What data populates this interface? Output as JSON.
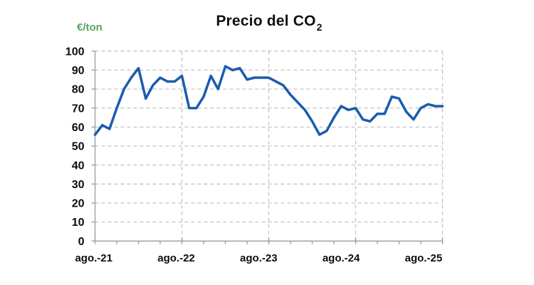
{
  "title": {
    "main": "Precio del CO",
    "sub": "2"
  },
  "y_axis_label": "€/ton",
  "colors": {
    "line": "#1b5cad",
    "unit_label": "#57a55f",
    "grid": "#c3c3c3",
    "axis": "#9b9b9b",
    "text": "#0d0d0d"
  },
  "chart_data": {
    "type": "line",
    "title": "Precio del CO2",
    "ylabel": "€/ton",
    "xlabel": "",
    "ylim": [
      0,
      100
    ],
    "y_ticks": [
      0,
      10,
      20,
      30,
      40,
      50,
      60,
      70,
      80,
      90,
      100
    ],
    "x_tick_labels": [
      "ago.-21",
      "ago.-22",
      "ago.-23",
      "ago.-24",
      "ago.-25"
    ],
    "label_every_n_points": 12,
    "minor_tick_every_n_points": 3,
    "grid": "dashed",
    "legend": "none",
    "series": [
      {
        "name": "Precio del CO2 (€/ton)",
        "values": [
          56,
          61,
          59,
          70,
          80,
          86,
          91,
          75,
          82,
          86,
          84,
          84,
          87,
          70,
          70,
          76,
          87,
          80,
          92,
          90,
          91,
          85,
          86,
          86,
          86,
          84,
          82,
          77,
          73,
          69,
          63,
          56,
          58,
          65,
          71,
          69,
          70,
          64,
          63,
          67,
          67,
          76,
          75,
          68,
          64,
          70,
          72,
          71,
          71
        ]
      }
    ]
  }
}
